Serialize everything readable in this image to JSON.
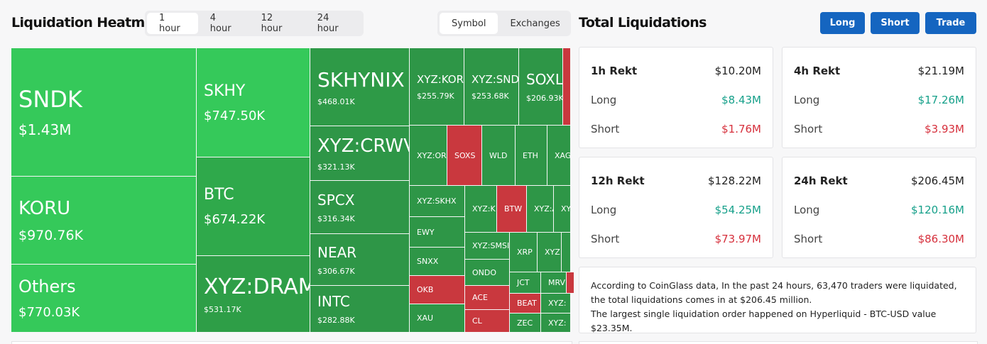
{
  "header": {
    "title": "Liquidation Heatmap",
    "time_tabs": [
      "1 hour",
      "4 hour",
      "12 hour",
      "24 hour"
    ],
    "view_tabs": [
      "Symbol",
      "Exchanges"
    ]
  },
  "heatmap": {
    "cells": [
      {
        "label": "SNDK",
        "value": "$1.43M",
        "color": "#35c95a"
      },
      {
        "label": "KORU",
        "value": "$970.76K",
        "color": "#35c95a"
      },
      {
        "label": "Others",
        "value": "$770.03K",
        "color": "#35c95a"
      },
      {
        "label": "SKHY",
        "value": "$747.50K",
        "color": "#35c95a"
      },
      {
        "label": "BTC",
        "value": "$674.22K",
        "color": "#2fa94b"
      },
      {
        "label": "XYZ:DRAM",
        "value": "$531.17K",
        "color": "#2e9e47"
      },
      {
        "label": "SKHYNIX",
        "value": "$468.01K",
        "color": "#2e9a47"
      },
      {
        "label": "XYZ:CRWV",
        "value": "$321.13K",
        "color": "#2e9647"
      },
      {
        "label": "SPCX",
        "value": "$316.34K",
        "color": "#2e9647"
      },
      {
        "label": "NEAR",
        "value": "$306.67K",
        "color": "#2e9647"
      },
      {
        "label": "INTC",
        "value": "$282.88K",
        "color": "#2e9647"
      },
      {
        "label": "XYZ:KORU",
        "value": "$255.79K",
        "color": "#2e9647"
      },
      {
        "label": "XYZ:SNDK",
        "value": "$253.68K",
        "color": "#2e9647"
      },
      {
        "label": "SOXL",
        "value": "$206.93K",
        "color": "#2e9647"
      },
      {
        "color": "#c9383e"
      },
      {
        "label": "XYZ:OR",
        "color": "#2e9647"
      },
      {
        "label": "SOXS",
        "color": "#c9383e"
      },
      {
        "label": "WLD",
        "color": "#2e9647"
      },
      {
        "label": "ETH",
        "color": "#2e9647"
      },
      {
        "label": "XAG",
        "color": "#2e9647"
      },
      {
        "label": "XYZ:SKHX",
        "color": "#2e9647"
      },
      {
        "label": "EWY",
        "color": "#2e9647"
      },
      {
        "label": "SNXX",
        "color": "#2e9647"
      },
      {
        "label": "OKB",
        "color": "#c9383e"
      },
      {
        "label": "XAU",
        "color": "#2e9647"
      },
      {
        "label": "XYZ:K",
        "color": "#2e9647"
      },
      {
        "label": "BTW",
        "color": "#c9383e"
      },
      {
        "label": "XYZ:A",
        "color": "#2e9647"
      },
      {
        "label": "XY",
        "color": "#2e9647"
      },
      {
        "label": "XYZ:SMSI",
        "color": "#2e9647"
      },
      {
        "label": "XRP",
        "color": "#2e9647"
      },
      {
        "label": "XYZ:",
        "color": "#2e9647"
      },
      {
        "color": "#2e9647"
      },
      {
        "label": "ONDO",
        "color": "#2e9647"
      },
      {
        "label": "ACE",
        "color": "#c9383e"
      },
      {
        "label": "CL",
        "color": "#c9383e"
      },
      {
        "label": "JCT",
        "color": "#2e9647"
      },
      {
        "label": "MRV",
        "color": "#2e9647"
      },
      {
        "color": "#c9383e"
      },
      {
        "label": "BEAT",
        "color": "#c9383e"
      },
      {
        "label": "XYZ:",
        "color": "#2e9647"
      },
      {
        "label": "ZEC",
        "color": "#2e9647"
      },
      {
        "label": "XYZ:",
        "color": "#2e9647"
      }
    ]
  },
  "summary": {
    "title": "Total Liquidations",
    "buttons": [
      "Long",
      "Short",
      "Trade"
    ],
    "cards": [
      {
        "title": "1h Rekt",
        "total": "$10.20M",
        "rows": [
          {
            "label": "Long",
            "value": "$8.43M"
          },
          {
            "label": "Short",
            "value": "$1.76M"
          }
        ]
      },
      {
        "title": "4h Rekt",
        "total": "$21.19M",
        "rows": [
          {
            "label": "Long",
            "value": "$17.26M"
          },
          {
            "label": "Short",
            "value": "$3.93M"
          }
        ]
      },
      {
        "title": "12h Rekt",
        "total": "$128.22M",
        "rows": [
          {
            "label": "Long",
            "value": "$54.25M"
          },
          {
            "label": "Short",
            "value": "$73.97M"
          }
        ]
      },
      {
        "title": "24h Rekt",
        "total": "$206.45M",
        "rows": [
          {
            "label": "Long",
            "value": "$120.16M"
          },
          {
            "label": "Short",
            "value": "$86.30M"
          }
        ]
      }
    ],
    "note": [
      "According to CoinGlass data, In the past 24 hours, 63,470 traders were liquidated, the total liquidations comes in at $206.45 million.",
      "The largest single liquidation order happened on Hyperliquid - BTC-USD value $23.35M."
    ]
  }
}
